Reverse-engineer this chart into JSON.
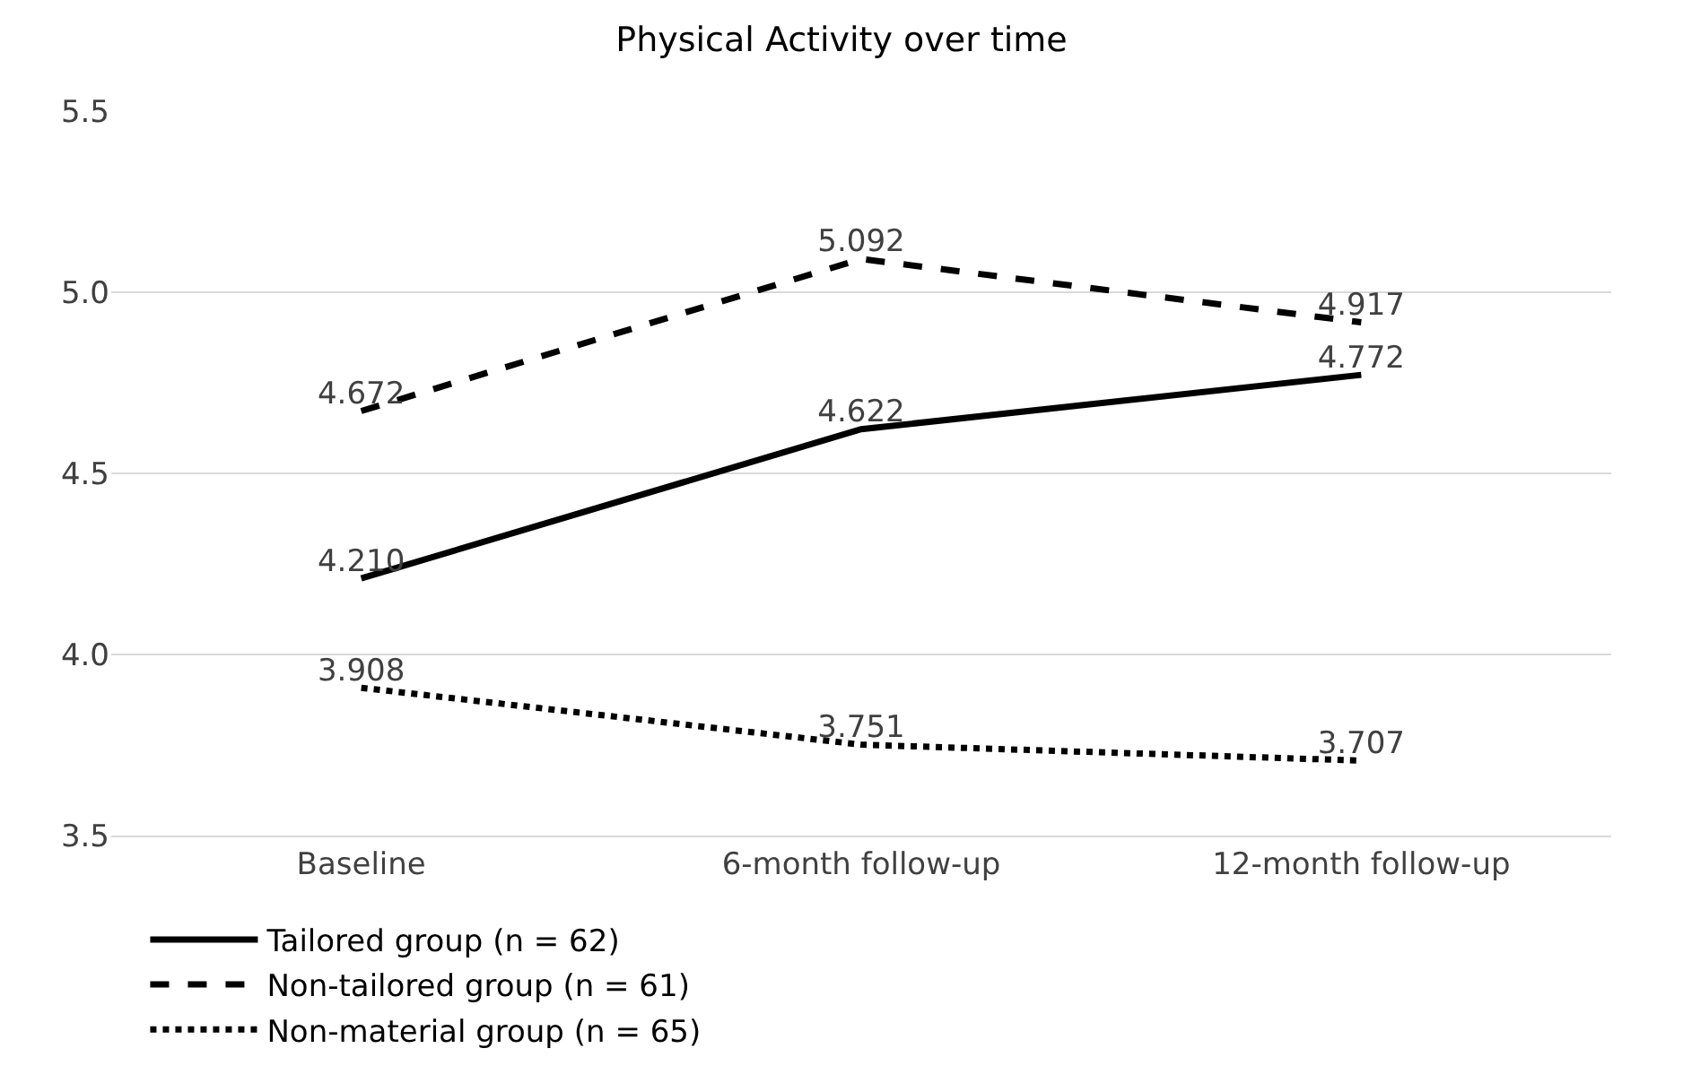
{
  "chart_data": {
    "type": "line",
    "title": "Physical Activity over time",
    "categories": [
      "Baseline",
      "6-month follow-up",
      "12-month follow-up"
    ],
    "series": [
      {
        "name": "Tailored group (n = 62)",
        "color": "#000000",
        "line_style": "solid",
        "values": [
          4.21,
          4.622,
          4.772
        ],
        "value_labels": [
          "4.210",
          "4.622",
          "4.772"
        ]
      },
      {
        "name": "Non-tailored group (n = 61)",
        "color": "#000000",
        "line_style": "dashed",
        "values": [
          4.672,
          5.092,
          4.917
        ],
        "value_labels": [
          "4.672",
          "5.092",
          "4.917"
        ]
      },
      {
        "name": "Non-material group (n = 65)",
        "color": "#000000",
        "line_style": "dotted",
        "values": [
          3.908,
          3.751,
          3.707
        ],
        "value_labels": [
          "3.908",
          "3.751",
          "3.707"
        ]
      }
    ],
    "ylim": [
      3.5,
      5.5
    ],
    "yticks": [
      {
        "value": 3.5,
        "label": "3.5"
      },
      {
        "value": 4,
        "label": "4.0"
      },
      {
        "value": 4.5,
        "label": "4.5"
      },
      {
        "value": 5,
        "label": "5.0"
      },
      {
        "value": 5.5,
        "label": "5.5"
      }
    ],
    "grid": "y",
    "legend": "bottom",
    "marker": "none"
  }
}
